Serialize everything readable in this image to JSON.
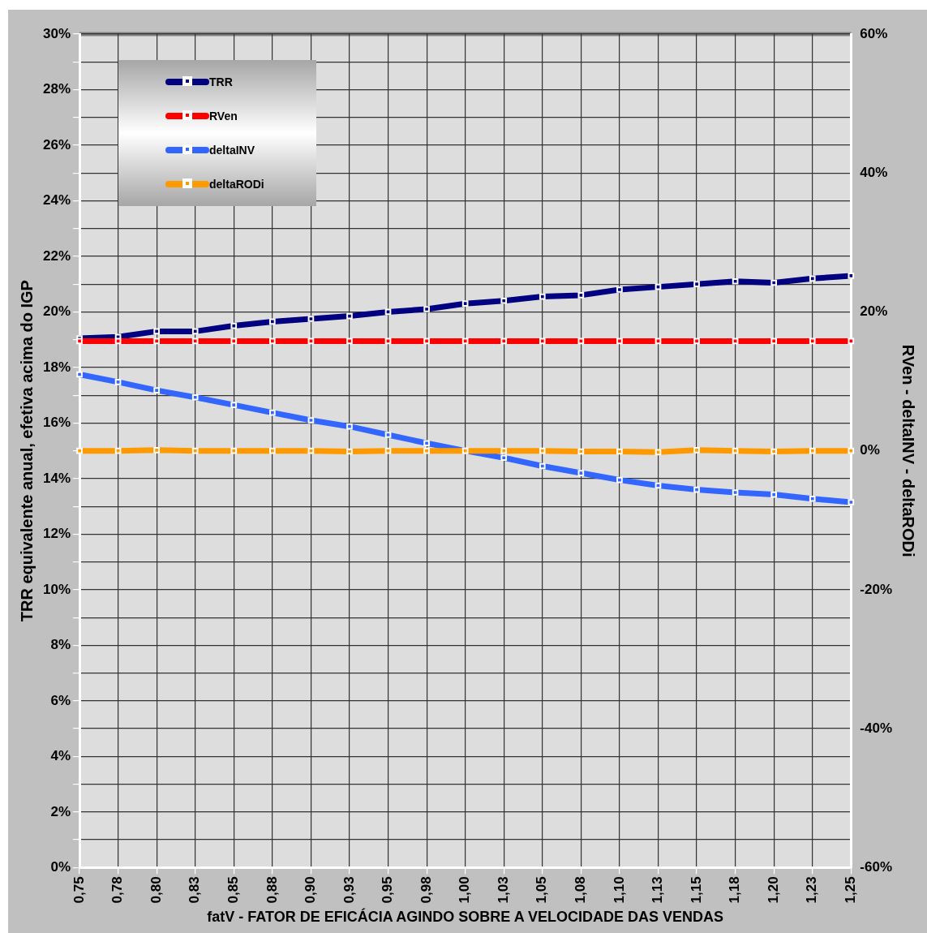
{
  "chart_data": {
    "type": "line",
    "xlabel": "fatV - FATOR DE EFICÁCIA AGINDO SOBRE A VELOCIDADE DAS VENDAS",
    "ylabel": "TRR equivalente anual, efetiva acima do IGP",
    "y2label": "RVen - deltaINV - deltaRODi",
    "categories": [
      "0,75",
      "0,78",
      "0,80",
      "0,83",
      "0,85",
      "0,88",
      "0,90",
      "0,93",
      "0,95",
      "0,98",
      "1,00",
      "1,03",
      "1,05",
      "1,08",
      "1,10",
      "1,13",
      "1,15",
      "1,18",
      "1,20",
      "1,23",
      "1,25"
    ],
    "series": [
      {
        "name": "TRR",
        "color": "#000080",
        "values": [
          19.05,
          19.1,
          19.3,
          19.3,
          19.5,
          19.65,
          19.75,
          19.85,
          20.0,
          20.1,
          20.3,
          20.4,
          20.55,
          20.6,
          20.8,
          20.9,
          21.0,
          21.1,
          21.05,
          21.2,
          21.3
        ]
      },
      {
        "name": "RVen",
        "color": "#ff0000",
        "axis": "y2",
        "values": [
          15.8,
          15.8,
          15.8,
          15.8,
          15.8,
          15.8,
          15.8,
          15.8,
          15.8,
          15.8,
          15.8,
          15.8,
          15.8,
          15.8,
          15.8,
          15.8,
          15.8,
          15.8,
          15.8,
          15.8,
          15.8
        ]
      },
      {
        "name": "deltaINV",
        "color": "#3366ff",
        "axis": "y2",
        "values": [
          11.0,
          9.9,
          8.7,
          7.7,
          6.6,
          5.5,
          4.4,
          3.5,
          2.3,
          1.1,
          0,
          -1.0,
          -2.2,
          -3.2,
          -4.2,
          -5.0,
          -5.6,
          -6.0,
          -6.3,
          -6.9,
          -7.4
        ]
      },
      {
        "name": "deltaRODi",
        "color": "#ff9900",
        "axis": "y2",
        "values": [
          0,
          0,
          0.1,
          0,
          0,
          0,
          0,
          -0.1,
          0,
          0,
          0,
          0,
          0,
          -0.1,
          -0.1,
          -0.2,
          0.1,
          0,
          -0.1,
          0,
          0
        ]
      }
    ],
    "ylim": [
      0,
      30
    ],
    "yticks": [
      {
        "value": 0,
        "label": "0%"
      },
      {
        "value": 1,
        "label": null
      },
      {
        "value": 2,
        "label": "2%"
      },
      {
        "value": 3,
        "label": null
      },
      {
        "value": 4,
        "label": "4%"
      },
      {
        "value": 5,
        "label": null
      },
      {
        "value": 6,
        "label": "6%"
      },
      {
        "value": 7,
        "label": null
      },
      {
        "value": 8,
        "label": "8%"
      },
      {
        "value": 9,
        "label": null
      },
      {
        "value": 10,
        "label": "10%"
      },
      {
        "value": 11,
        "label": null
      },
      {
        "value": 12,
        "label": "12%"
      },
      {
        "value": 13,
        "label": null
      },
      {
        "value": 14,
        "label": "14%"
      },
      {
        "value": 15,
        "label": null
      },
      {
        "value": 16,
        "label": "16%"
      },
      {
        "value": 17,
        "label": null
      },
      {
        "value": 18,
        "label": "18%"
      },
      {
        "value": 19,
        "label": null
      },
      {
        "value": 20,
        "label": "20%"
      },
      {
        "value": 21,
        "label": null
      },
      {
        "value": 22,
        "label": "22%"
      },
      {
        "value": 23,
        "label": null
      },
      {
        "value": 24,
        "label": "24%"
      },
      {
        "value": 25,
        "label": null
      },
      {
        "value": 26,
        "label": "26%"
      },
      {
        "value": 27,
        "label": null
      },
      {
        "value": 28,
        "label": "28%"
      },
      {
        "value": 29,
        "label": null
      },
      {
        "value": 30,
        "label": "30%"
      }
    ],
    "y2lim": [
      -60,
      60
    ],
    "y2ticks": [
      {
        "value": -60,
        "label": "-60%"
      },
      {
        "value": -40,
        "label": "-40%"
      },
      {
        "value": -20,
        "label": "-20%"
      },
      {
        "value": 0,
        "label": "0%"
      },
      {
        "value": 20,
        "label": "20%"
      },
      {
        "value": 40,
        "label": "40%"
      },
      {
        "value": 60,
        "label": "60%"
      }
    ],
    "grid": true,
    "legend": "top left",
    "marker": "square",
    "line_style": "solid"
  }
}
